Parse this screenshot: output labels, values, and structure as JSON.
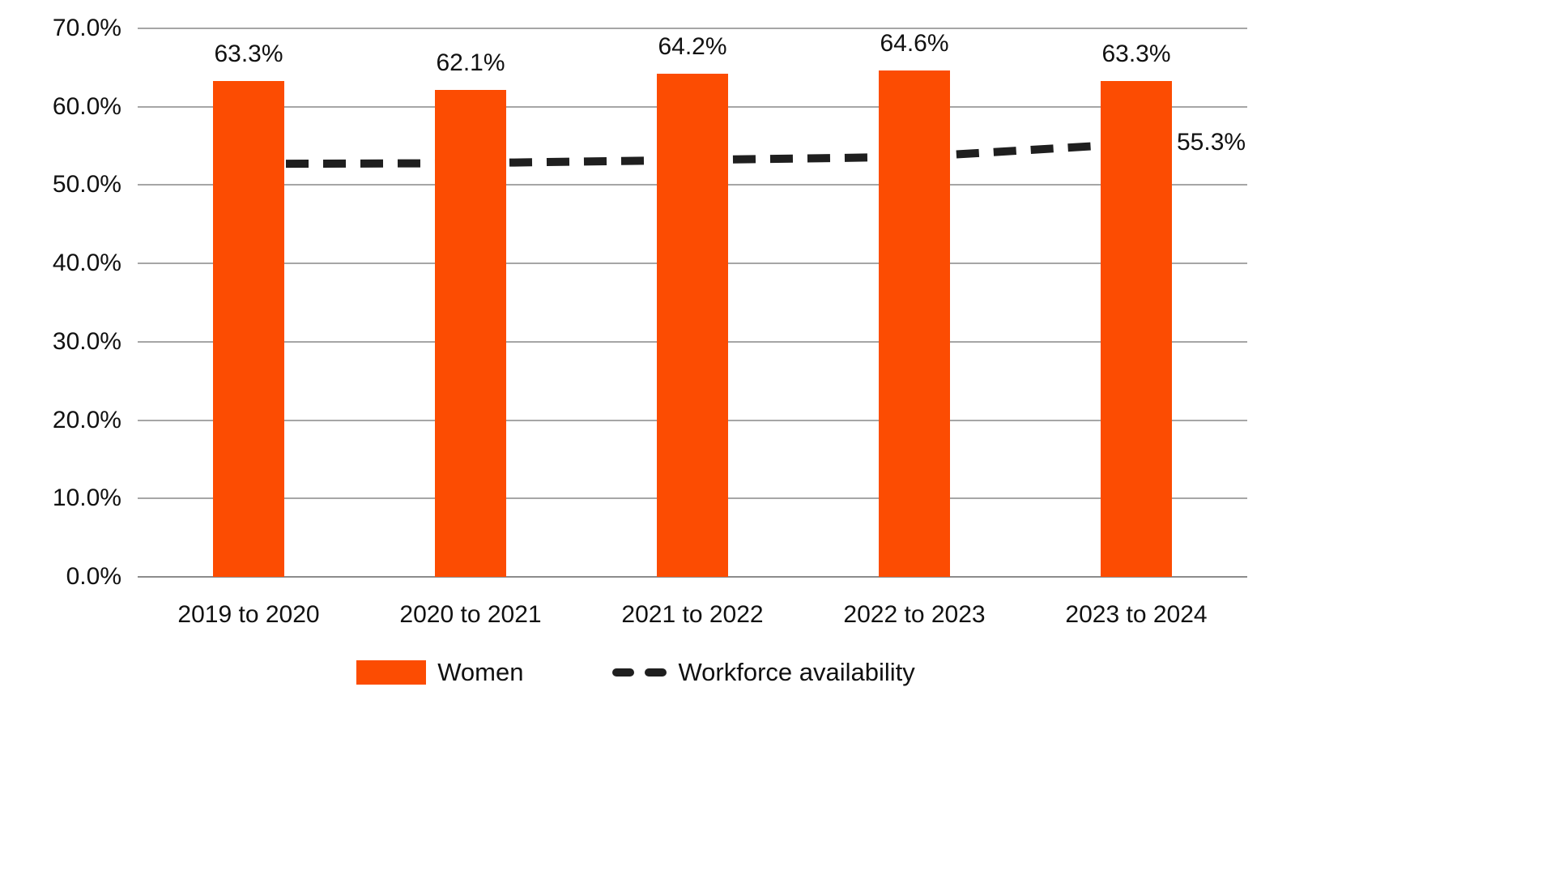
{
  "chart_data": {
    "type": "bar",
    "title": "",
    "categories": [
      "2019 to 2020",
      "2020 to 2021",
      "2021 to 2022",
      "2022 to 2023",
      "2023 to 2024"
    ],
    "series": [
      {
        "name": "Women",
        "type": "bar",
        "color": "#FC4C02",
        "values": [
          63.3,
          62.1,
          64.2,
          64.6,
          63.3
        ],
        "data_labels": [
          "63.3%",
          "62.1%",
          "64.2%",
          "64.6%",
          "63.3%"
        ]
      },
      {
        "name": "Workforce availability",
        "type": "line",
        "dashed": true,
        "color": "#1F1F1F",
        "values": [
          52.7,
          52.8,
          53.2,
          53.6,
          55.3
        ],
        "end_label": "55.3%"
      }
    ],
    "y_axis": {
      "min": 0,
      "max": 70,
      "step": 10,
      "tick_labels": [
        "0.0%",
        "10.0%",
        "20.0%",
        "30.0%",
        "40.0%",
        "50.0%",
        "60.0%",
        "70.0%"
      ]
    },
    "grid": true,
    "legend_position": "bottom"
  }
}
